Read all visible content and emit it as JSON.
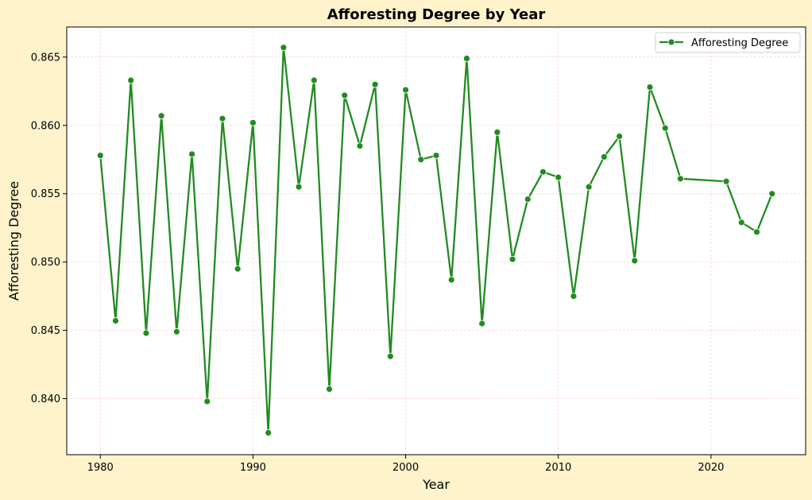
{
  "chart_data": {
    "type": "line",
    "title": "Afforesting Degree by Year",
    "xlabel": "Year",
    "ylabel": "Afforesting Degree",
    "xlim": [
      1977.8,
      2026.2
    ],
    "ylim": [
      0.8359,
      0.8672
    ],
    "xticks": [
      1980,
      1990,
      2000,
      2010,
      2020
    ],
    "yticks": [
      0.84,
      0.845,
      0.85,
      0.855,
      0.86,
      0.865
    ],
    "ytick_labels": [
      "0.840",
      "0.845",
      "0.850",
      "0.855",
      "0.860",
      "0.865"
    ],
    "grid": true,
    "legend_position": "top-right",
    "series": [
      {
        "name": "Afforesting Degree",
        "color": "#228b22",
        "marker": "circle",
        "x": [
          1980,
          1981,
          1982,
          1983,
          1984,
          1985,
          1986,
          1987,
          1988,
          1989,
          1990,
          1991,
          1992,
          1993,
          1994,
          1995,
          1996,
          1997,
          1998,
          1999,
          2000,
          2001,
          2002,
          2003,
          2004,
          2005,
          2006,
          2007,
          2008,
          2009,
          2010,
          2011,
          2012,
          2013,
          2014,
          2015,
          2016,
          2017,
          2018,
          2021,
          2022,
          2023,
          2024
        ],
        "y": [
          0.8578,
          0.8457,
          0.8633,
          0.8448,
          0.8607,
          0.8449,
          0.8579,
          0.8398,
          0.8605,
          0.8495,
          0.8602,
          0.8375,
          0.8657,
          0.8555,
          0.8633,
          0.8407,
          0.8622,
          0.8585,
          0.863,
          0.8431,
          0.8626,
          0.8575,
          0.8578,
          0.8487,
          0.8649,
          0.8455,
          0.8595,
          0.8502,
          0.8546,
          0.8566,
          0.8562,
          0.8475,
          0.8555,
          0.8577,
          0.8592,
          0.8501,
          0.8628,
          0.8598,
          0.8561,
          0.8559,
          0.8529,
          0.8522,
          0.855
        ]
      }
    ]
  }
}
